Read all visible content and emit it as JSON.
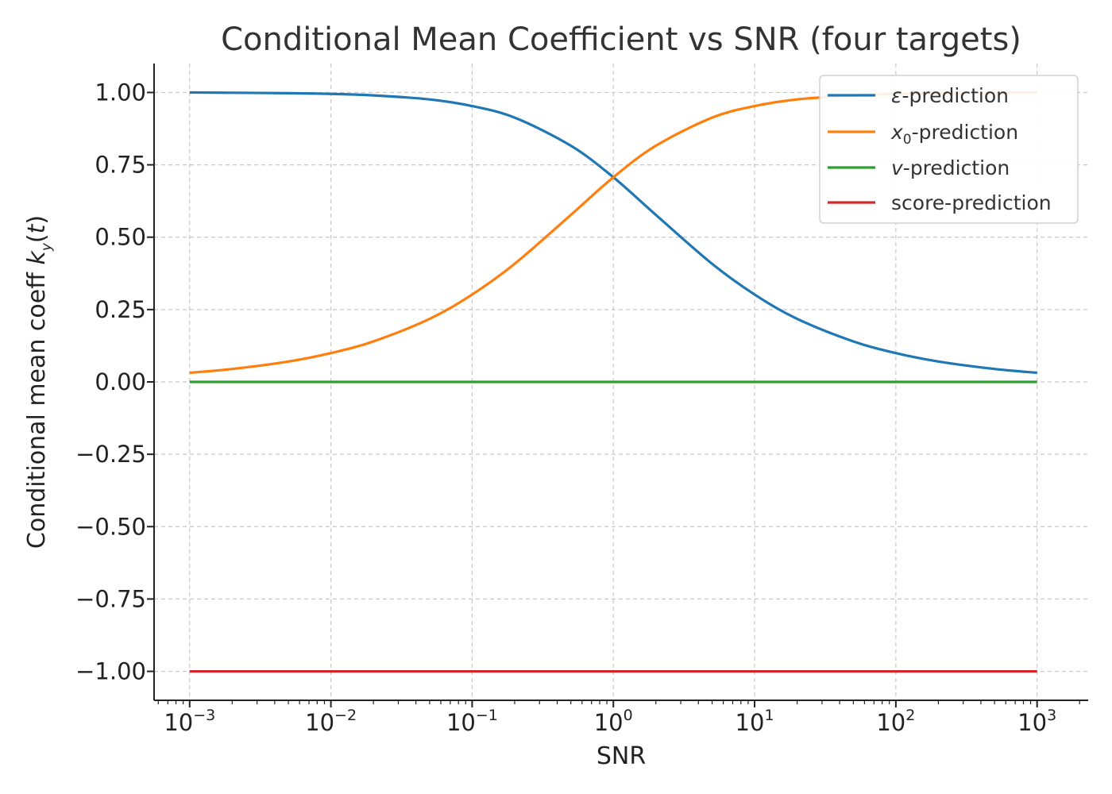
{
  "chart_data": {
    "type": "line",
    "title": "Conditional Mean Coefficient vs SNR (four targets)",
    "xlabel": "SNR",
    "ylabel": {
      "prefix": "Conditional mean coeff ",
      "k": "k",
      "sub": "y",
      "open": "(",
      "t": "t",
      "close": ")"
    },
    "xscale": "log",
    "xlim": [
      0.00056,
      2300
    ],
    "ylim": [
      -1.1,
      1.1
    ],
    "grid": true,
    "legend_position": "top-right",
    "x_ticks": [
      {
        "value": 0.001,
        "base": "10",
        "exp": "−3"
      },
      {
        "value": 0.01,
        "base": "10",
        "exp": "−2"
      },
      {
        "value": 0.1,
        "base": "10",
        "exp": "−1"
      },
      {
        "value": 1,
        "base": "10",
        "exp": "0"
      },
      {
        "value": 10,
        "base": "10",
        "exp": "1"
      },
      {
        "value": 100,
        "base": "10",
        "exp": "2"
      },
      {
        "value": 1000,
        "base": "10",
        "exp": "3"
      }
    ],
    "y_ticks": [
      {
        "value": 1.0,
        "label": "1.00"
      },
      {
        "value": 0.75,
        "label": "0.75"
      },
      {
        "value": 0.5,
        "label": "0.50"
      },
      {
        "value": 0.25,
        "label": "0.25"
      },
      {
        "value": 0.0,
        "label": "0.00"
      },
      {
        "value": -0.25,
        "label": "−0.25"
      },
      {
        "value": -0.5,
        "label": "−0.50"
      },
      {
        "value": -0.75,
        "label": "−0.75"
      },
      {
        "value": -1.0,
        "label": "−1.00"
      }
    ],
    "x": [
      0.001,
      0.002,
      0.005,
      0.01,
      0.02,
      0.05,
      0.1,
      0.2,
      0.5,
      1,
      2,
      5,
      10,
      20,
      50,
      100,
      200,
      500,
      1000
    ],
    "series": [
      {
        "name": "ε-prediction",
        "legend_symbol": "ε",
        "legend_suffix": "-prediction",
        "color": "#1f77b4",
        "values": [
          1.0,
          0.999,
          0.9975,
          0.995,
          0.99,
          0.976,
          0.953,
          0.913,
          0.816,
          0.707,
          0.577,
          0.408,
          0.302,
          0.218,
          0.14,
          0.0995,
          0.0705,
          0.0447,
          0.0316
        ]
      },
      {
        "name": "x0-prediction",
        "legend_symbol": "x",
        "legend_sub": "0",
        "legend_suffix": "-prediction",
        "color": "#ff7f0e",
        "values": [
          0.0316,
          0.0447,
          0.0705,
          0.0995,
          0.14,
          0.218,
          0.302,
          0.408,
          0.577,
          0.707,
          0.816,
          0.913,
          0.953,
          0.976,
          0.99,
          0.995,
          0.9975,
          0.999,
          1.0
        ]
      },
      {
        "name": "v-prediction",
        "legend_symbol": "v",
        "legend_suffix": "-prediction",
        "color": "#2ca02c",
        "values": [
          0,
          0,
          0,
          0,
          0,
          0,
          0,
          0,
          0,
          0,
          0,
          0,
          0,
          0,
          0,
          0,
          0,
          0,
          0
        ]
      },
      {
        "name": "score-prediction",
        "legend_symbol": "",
        "legend_suffix": "score-prediction",
        "color": "#d62728",
        "values": [
          -1,
          -1,
          -1,
          -1,
          -1,
          -1,
          -1,
          -1,
          -1,
          -1,
          -1,
          -1,
          -1,
          -1,
          -1,
          -1,
          -1,
          -1,
          -1
        ]
      }
    ]
  }
}
